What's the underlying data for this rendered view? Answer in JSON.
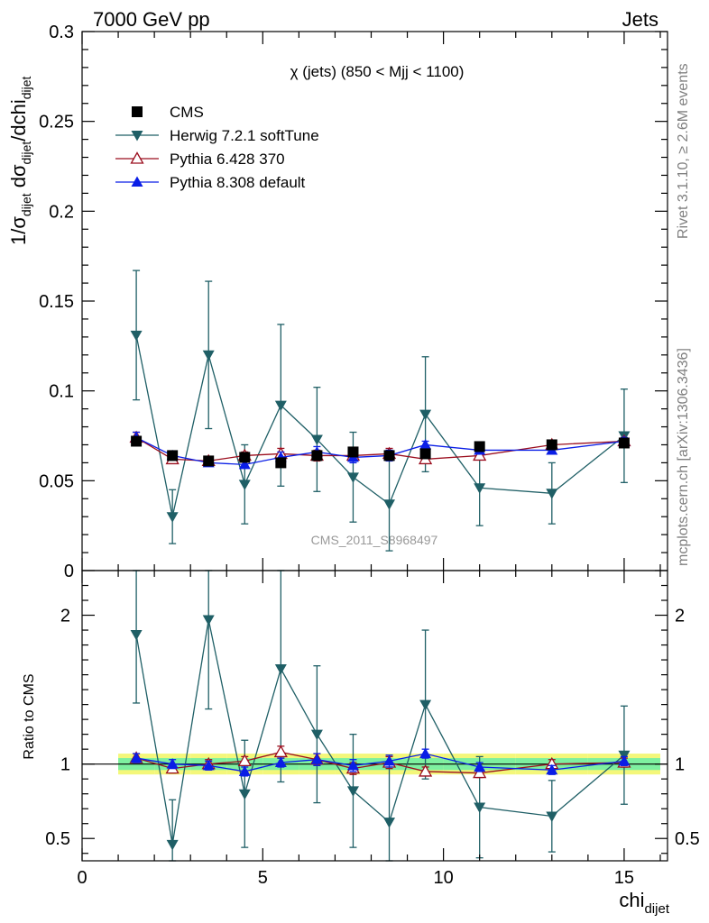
{
  "header": {
    "left": "7000 GeV pp",
    "right": "Jets"
  },
  "side_labels": {
    "rivet": "Rivet 3.1.10, ≥ 2.6M events",
    "mcplots": "mcplots.cern.ch [arXiv:1306.3436]"
  },
  "watermark": "CMS_2011_S8968497",
  "chart_data": {
    "type": "scatter",
    "title": "χ (jets) (850 < Mjj < 1100)",
    "ylabel_main": "1/σ_dijet dσ_dijet/dchi_dijet",
    "ylabel_ratio": "Ratio to CMS",
    "xlabel": "chi_dijet",
    "xlim": [
      0,
      16.2
    ],
    "ylim_main": [
      0,
      0.3
    ],
    "ylim_ratio": [
      0.35,
      2.3
    ],
    "x_ticks": [
      "0",
      "5",
      "10",
      "15"
    ],
    "y_ticks_main": [
      "0.05",
      "0.1",
      "0.15",
      "0.2",
      "0.25",
      "0.3"
    ],
    "y_ticks_ratio": [
      "0.5",
      "1",
      "2"
    ],
    "x": [
      1.5,
      2.5,
      3.5,
      4.5,
      5.5,
      6.5,
      7.5,
      8.5,
      9.5,
      11,
      13,
      15
    ],
    "x_edges": [
      1,
      2,
      3,
      4,
      5,
      6,
      7,
      8,
      9,
      10,
      12,
      14,
      16
    ],
    "legend": [
      "CMS",
      "Herwig 7.2.1 softTune",
      "Pythia 6.428 370",
      "Pythia 8.308 default"
    ],
    "series": [
      {
        "name": "CMS",
        "color": "#000000",
        "marker": "square",
        "values": [
          0.072,
          0.064,
          0.061,
          0.063,
          0.06,
          0.064,
          0.066,
          0.064,
          0.065,
          0.069,
          0.07,
          0.071
        ],
        "band_inner": [
          0.04,
          0.04,
          0.04,
          0.04,
          0.04,
          0.04,
          0.04,
          0.04,
          0.04,
          0.04,
          0.04,
          0.04
        ],
        "band_outer": [
          0.07,
          0.07,
          0.07,
          0.07,
          0.07,
          0.07,
          0.07,
          0.07,
          0.07,
          0.07,
          0.07,
          0.07
        ]
      },
      {
        "name": "Herwig 7.2.1 softTune",
        "color": "#1f5f66",
        "marker": "triangle-down",
        "values": [
          0.131,
          0.03,
          0.12,
          0.048,
          0.092,
          0.073,
          0.052,
          0.037,
          0.087,
          0.046,
          0.043,
          0.075
        ],
        "err": [
          0.036,
          0.015,
          0.041,
          0.022,
          0.045,
          0.029,
          0.025,
          0.026,
          0.032,
          0.021,
          0.017,
          0.026
        ],
        "ratio": [
          1.87,
          0.46,
          1.97,
          0.8,
          1.64,
          1.2,
          0.82,
          0.61,
          1.4,
          0.71,
          0.65,
          1.06
        ],
        "ratio_err": [
          0.46,
          0.3,
          0.6,
          0.36,
          0.76,
          0.46,
          0.38,
          0.4,
          0.5,
          0.34,
          0.24,
          0.33
        ]
      },
      {
        "name": "Pythia 6.428 370",
        "color": "#9b0e1e",
        "marker": "triangle-up-open",
        "values": [
          0.074,
          0.062,
          0.061,
          0.064,
          0.065,
          0.064,
          0.064,
          0.065,
          0.062,
          0.064,
          0.07,
          0.072
        ],
        "err": [
          0.003,
          0.002,
          0.002,
          0.002,
          0.003,
          0.003,
          0.003,
          0.003,
          0.002,
          0.002,
          0.002,
          0.002
        ],
        "ratio": [
          1.04,
          0.97,
          1.0,
          1.02,
          1.08,
          1.03,
          0.97,
          1.01,
          0.95,
          0.94,
          1.0,
          1.01
        ],
        "ratio_err": [
          0.03,
          0.03,
          0.03,
          0.03,
          0.04,
          0.04,
          0.04,
          0.04,
          0.03,
          0.03,
          0.03,
          0.03
        ]
      },
      {
        "name": "Pythia 8.308 default",
        "color": "#0a1ee6",
        "marker": "triangle-up",
        "values": [
          0.074,
          0.064,
          0.06,
          0.059,
          0.063,
          0.066,
          0.063,
          0.064,
          0.07,
          0.067,
          0.067,
          0.072
        ],
        "err": [
          0.003,
          0.002,
          0.002,
          0.002,
          0.003,
          0.003,
          0.003,
          0.003,
          0.002,
          0.002,
          0.002,
          0.002
        ],
        "ratio": [
          1.04,
          1.0,
          0.99,
          0.95,
          1.01,
          1.03,
          0.99,
          1.02,
          1.07,
          0.98,
          0.96,
          1.02
        ],
        "ratio_err": [
          0.03,
          0.03,
          0.03,
          0.03,
          0.03,
          0.04,
          0.04,
          0.04,
          0.03,
          0.03,
          0.03,
          0.03
        ]
      }
    ]
  }
}
